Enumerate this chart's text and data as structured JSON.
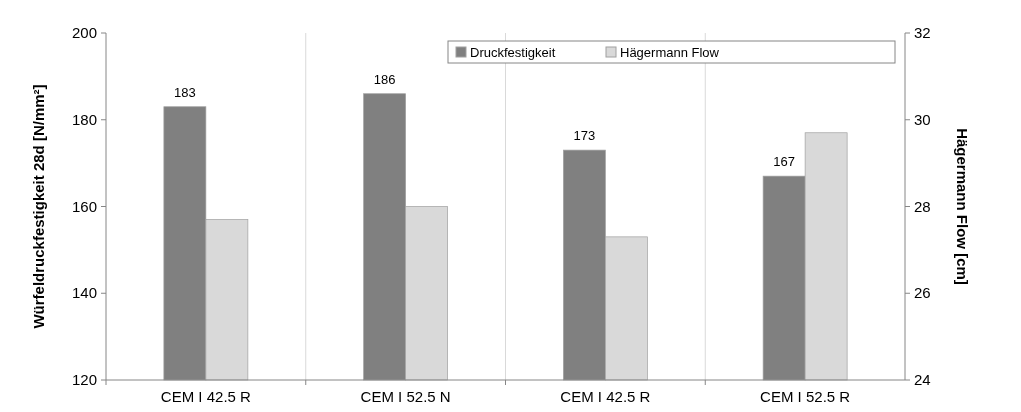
{
  "chart_data": {
    "type": "bar",
    "ylabel": "Würfeldruckfestigkeit 28d [N/mm²]",
    "y2label": "Hägermann Flow [cm]",
    "categories": [
      "CEM I 42.5 R",
      "CEM I 52.5 N",
      "CEM I 42.5 R",
      "CEM I 52.5 R"
    ],
    "series": [
      {
        "name": "Druckfestigkeit",
        "color": "#808080",
        "values": [
          183,
          186,
          173,
          167
        ],
        "value_labels": [
          "183",
          "186",
          "173",
          "167"
        ]
      },
      {
        "name": "Hägermann Flow",
        "color": "#d9d9d9",
        "axis": "y2",
        "values": [
          27.7,
          28.0,
          27.3,
          29.7
        ]
      }
    ],
    "ylim": [
      120,
      200
    ],
    "yticks": [
      120,
      140,
      160,
      180,
      200
    ],
    "y2lim": [
      24,
      32
    ],
    "y2ticks": [
      24,
      26,
      28,
      30,
      32
    ],
    "grid": "x",
    "legend": "top right"
  }
}
